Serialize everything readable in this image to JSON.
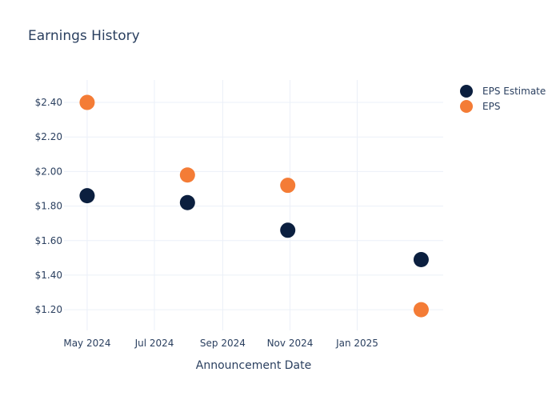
{
  "chart_data": {
    "type": "scatter",
    "title": "Earnings History",
    "xlabel": "Announcement Date",
    "ylabel": "",
    "x_ticks": [
      {
        "date": "2024-05-01",
        "label": "May 2024"
      },
      {
        "date": "2024-07-01",
        "label": "Jul 2024"
      },
      {
        "date": "2024-09-01",
        "label": "Sep 2024"
      },
      {
        "date": "2024-11-01",
        "label": "Nov 2024"
      },
      {
        "date": "2025-01-01",
        "label": "Jan 2025"
      }
    ],
    "y_ticks": [
      {
        "value": 1.2,
        "label": "$1.20"
      },
      {
        "value": 1.4,
        "label": "$1.40"
      },
      {
        "value": 1.6,
        "label": "$1.60"
      },
      {
        "value": 1.8,
        "label": "$1.80"
      },
      {
        "value": 2.0,
        "label": "$2.00"
      },
      {
        "value": 2.2,
        "label": "$2.20"
      },
      {
        "value": 2.4,
        "label": "$2.40"
      }
    ],
    "xlim": [
      "2024-04-10",
      "2025-03-20"
    ],
    "ylim": [
      1.08,
      2.53
    ],
    "grid": true,
    "legend_position": "top-right",
    "series": [
      {
        "name": "EPS Estimate",
        "color": "#0b1f3f",
        "points": [
          {
            "x": "2024-05-01",
            "y": 1.86
          },
          {
            "x": "2024-07-31",
            "y": 1.82
          },
          {
            "x": "2024-10-30",
            "y": 1.66
          },
          {
            "x": "2025-02-28",
            "y": 1.49
          }
        ]
      },
      {
        "name": "EPS",
        "color": "#f47c36",
        "points": [
          {
            "x": "2024-05-01",
            "y": 2.4
          },
          {
            "x": "2024-07-31",
            "y": 1.98
          },
          {
            "x": "2024-10-30",
            "y": 1.92
          },
          {
            "x": "2025-02-28",
            "y": 1.2
          }
        ]
      }
    ]
  }
}
